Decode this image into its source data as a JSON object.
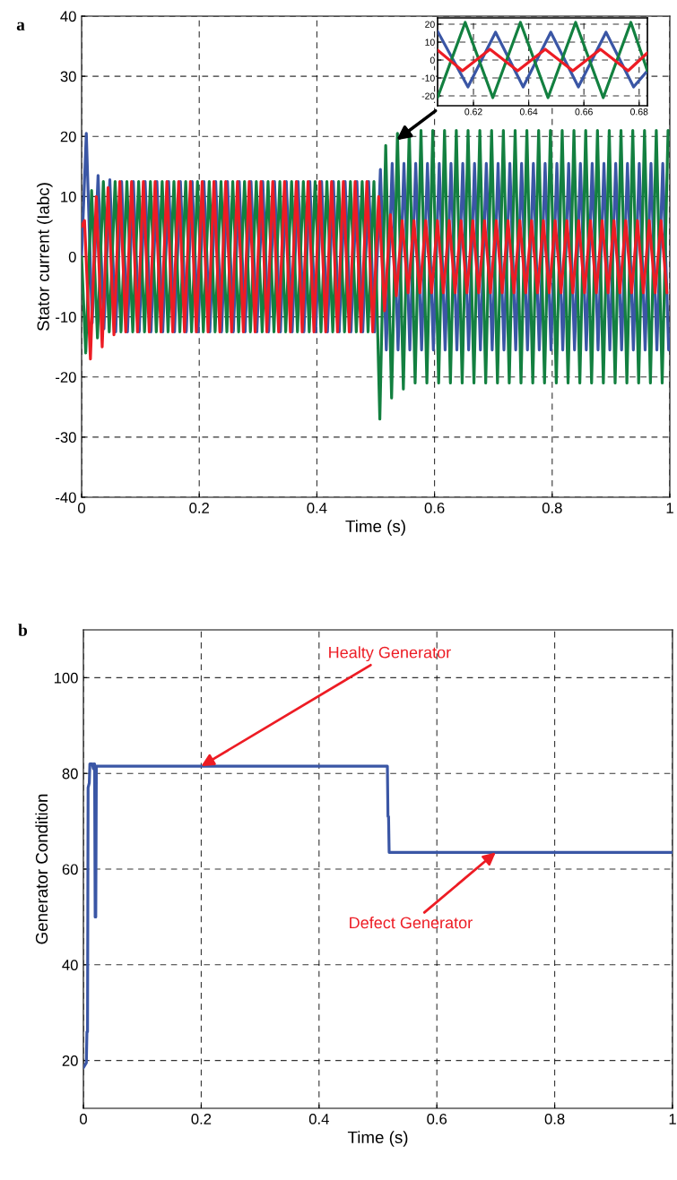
{
  "chart_data": [
    {
      "type": "line",
      "title": "a",
      "xlabel": "Time (s)",
      "ylabel": "Stator current (Iabc)",
      "xlim": [
        0,
        1
      ],
      "ylim": [
        -40,
        40
      ],
      "xticks": [
        0,
        0.2,
        0.4,
        0.6,
        0.8,
        1
      ],
      "yticks": [
        -40,
        -30,
        -20,
        -10,
        0,
        10,
        20,
        30,
        40
      ],
      "grid": true,
      "line_style": "solid",
      "series": [
        {
          "color": "#3a56a5",
          "x": [
            0,
            0.008,
            0.018,
            0.028,
            0.038,
            0.048,
            0.058,
            0.068,
            0.078,
            0.088,
            0.098,
            0.108,
            0.118,
            0.128,
            0.138,
            0.148,
            0.158,
            0.168,
            0.178,
            0.188,
            0.198,
            0.208,
            0.218,
            0.228,
            0.238,
            0.248,
            0.258,
            0.268,
            0.278,
            0.288,
            0.298,
            0.308,
            0.318,
            0.328,
            0.338,
            0.348,
            0.358,
            0.368,
            0.378,
            0.388,
            0.398,
            0.408,
            0.418,
            0.428,
            0.438,
            0.448,
            0.458,
            0.468,
            0.478,
            0.488,
            0.498,
            0.508,
            0.518,
            0.528,
            0.538,
            0.548,
            0.558,
            0.568,
            0.578,
            0.588,
            0.598,
            0.608,
            0.618,
            0.628,
            0.638,
            0.648,
            0.658,
            0.668,
            0.678,
            0.688,
            0.698,
            0.708,
            0.718,
            0.728,
            0.738,
            0.748,
            0.758,
            0.768,
            0.778,
            0.788,
            0.798,
            0.808,
            0.818,
            0.828,
            0.838,
            0.848,
            0.858,
            0.868,
            0.878,
            0.888,
            0.898,
            0.908,
            0.918,
            0.928,
            0.938,
            0.948,
            0.958,
            0.968,
            0.978,
            0.988,
            0.998
          ],
          "values": [
            0,
            20.5,
            -11,
            13.5,
            -12,
            12.8,
            -12.5,
            12.5,
            -12.5,
            12.5,
            -12.5,
            12.5,
            -12.5,
            12.5,
            -12.5,
            12.5,
            -12.5,
            12.5,
            -12.5,
            12.5,
            -12.5,
            12.5,
            -12.5,
            12.5,
            -12.5,
            12.5,
            -12.5,
            12.5,
            -12.5,
            12.5,
            -12.5,
            12.5,
            -12.5,
            12.5,
            -12.5,
            12.5,
            -12.5,
            12.5,
            -12.5,
            12.5,
            -12.5,
            12.5,
            -12.5,
            12.5,
            -12.5,
            12.5,
            -12.5,
            12.5,
            -12.5,
            12.5,
            -12.5,
            14.5,
            -15.5,
            15.5,
            -15.5,
            15.5,
            -15.5,
            15.5,
            -15.5,
            15.5,
            -15.5,
            15.5,
            -15.5,
            15.5,
            -15.5,
            15.5,
            -15.5,
            15.5,
            -15.5,
            15.5,
            -15.5,
            15.5,
            -15.5,
            15.5,
            -15.5,
            15.5,
            -15.5,
            15.5,
            -15.5,
            15.5,
            -15.5,
            15.5,
            -15.5,
            15.5,
            -15.5,
            15.5,
            -15.5,
            15.5,
            -15.5,
            15.5,
            -15.5,
            15.5,
            -15.5,
            15.5,
            -15.5,
            15.5,
            -15.5,
            15.5,
            -15.5,
            15.5,
            -15.5
          ]
        },
        {
          "color": "#138040",
          "x": [
            0,
            0.007,
            0.017,
            0.027,
            0.037,
            0.047,
            0.057,
            0.067,
            0.077,
            0.087,
            0.097,
            0.107,
            0.117,
            0.127,
            0.137,
            0.147,
            0.157,
            0.167,
            0.177,
            0.187,
            0.197,
            0.207,
            0.217,
            0.227,
            0.237,
            0.247,
            0.257,
            0.267,
            0.277,
            0.287,
            0.297,
            0.307,
            0.317,
            0.327,
            0.337,
            0.347,
            0.357,
            0.367,
            0.377,
            0.387,
            0.397,
            0.407,
            0.417,
            0.427,
            0.437,
            0.447,
            0.457,
            0.467,
            0.477,
            0.487,
            0.497,
            0.507,
            0.517,
            0.527,
            0.537,
            0.547,
            0.557,
            0.567,
            0.577,
            0.587,
            0.597,
            0.607,
            0.617,
            0.627,
            0.637,
            0.647,
            0.657,
            0.667,
            0.677,
            0.687,
            0.697,
            0.707,
            0.717,
            0.727,
            0.737,
            0.747,
            0.757,
            0.767,
            0.777,
            0.787,
            0.797,
            0.807,
            0.817,
            0.827,
            0.837,
            0.847,
            0.857,
            0.867,
            0.877,
            0.887,
            0.897,
            0.907,
            0.917,
            0.927,
            0.937,
            0.947,
            0.957,
            0.967,
            0.977,
            0.987,
            0.997
          ],
          "values": [
            0,
            -16,
            11,
            -13.5,
            12.5,
            -12.5,
            12.5,
            -12.5,
            12.5,
            -12.5,
            12.5,
            -12.5,
            12.5,
            -12.5,
            12.5,
            -12.5,
            12.5,
            -12.5,
            12.5,
            -12.5,
            12.5,
            -12.5,
            12.5,
            -12.5,
            12.5,
            -12.5,
            12.5,
            -12.5,
            12.5,
            -12.5,
            12.5,
            -12.5,
            12.5,
            -12.5,
            12.5,
            -12.5,
            12.5,
            -12.5,
            12.5,
            -12.5,
            12.5,
            -12.5,
            12.5,
            -12.5,
            12.5,
            -12.5,
            12.5,
            -12.5,
            12.5,
            -12.5,
            12.5,
            -27,
            18.5,
            -23.5,
            20.5,
            -22,
            21,
            -21,
            21,
            -21,
            21,
            -21,
            21,
            -21,
            21,
            -21,
            21,
            -21,
            21,
            -21,
            21,
            -21,
            21,
            -21,
            21,
            -21,
            21,
            -21,
            21,
            -21,
            21,
            -21,
            21,
            -21,
            21,
            -21,
            21,
            -21,
            21,
            -21,
            21,
            -21,
            21,
            -21,
            21,
            -21,
            21,
            -21,
            21,
            -21,
            21
          ]
        },
        {
          "color": "#ed1c24",
          "x": [
            0,
            0.005,
            0.015,
            0.025,
            0.035,
            0.045,
            0.055,
            0.065,
            0.075,
            0.085,
            0.095,
            0.105,
            0.115,
            0.125,
            0.135,
            0.145,
            0.155,
            0.165,
            0.175,
            0.185,
            0.195,
            0.205,
            0.215,
            0.225,
            0.235,
            0.245,
            0.255,
            0.265,
            0.275,
            0.285,
            0.295,
            0.305,
            0.315,
            0.325,
            0.335,
            0.345,
            0.355,
            0.365,
            0.375,
            0.385,
            0.395,
            0.405,
            0.415,
            0.425,
            0.435,
            0.445,
            0.455,
            0.465,
            0.475,
            0.485,
            0.495,
            0.505,
            0.515,
            0.525,
            0.535,
            0.545,
            0.555,
            0.565,
            0.575,
            0.585,
            0.595,
            0.605,
            0.615,
            0.625,
            0.635,
            0.645,
            0.655,
            0.665,
            0.675,
            0.685,
            0.695,
            0.705,
            0.715,
            0.725,
            0.735,
            0.745,
            0.755,
            0.765,
            0.775,
            0.785,
            0.795,
            0.805,
            0.815,
            0.825,
            0.835,
            0.845,
            0.855,
            0.865,
            0.875,
            0.885,
            0.895,
            0.905,
            0.915,
            0.925,
            0.935,
            0.945,
            0.955,
            0.965,
            0.975,
            0.985,
            0.995
          ],
          "values": [
            5,
            6,
            -17,
            10,
            -15,
            11.5,
            -13,
            12.5,
            -12.5,
            12.5,
            -12.5,
            12.5,
            -12.5,
            12.5,
            -12.5,
            12.5,
            -12.5,
            12.5,
            -12.5,
            12.5,
            -12.5,
            12.5,
            -12.5,
            12.5,
            -12.5,
            12.5,
            -12.5,
            12.5,
            -12.5,
            12.5,
            -12.5,
            12.5,
            -12.5,
            12.5,
            -12.5,
            12.5,
            -12.5,
            12.5,
            -12.5,
            12.5,
            -12.5,
            12.5,
            -12.5,
            12.5,
            -12.5,
            12.5,
            -12.5,
            12.5,
            -12.5,
            12.5,
            -12.5,
            10,
            -9,
            7,
            -6.5,
            6,
            -6,
            6,
            -6,
            6,
            -6,
            6,
            -6,
            6,
            -6,
            6,
            -6,
            6,
            -6,
            6,
            -6,
            6,
            -6,
            6,
            -6,
            6,
            -6,
            6,
            -6,
            6,
            -6,
            6,
            -6,
            6,
            -6,
            6,
            -6,
            6,
            -6,
            6,
            -6,
            6,
            -6,
            6,
            -6,
            6,
            -6,
            6,
            -6,
            6,
            -6
          ]
        }
      ]
    },
    {
      "type": "line",
      "xlim": [
        0.607,
        0.683
      ],
      "ylim": [
        -25.5,
        23.5
      ],
      "xticks": [
        0.62,
        0.64,
        0.66,
        0.68
      ],
      "yticks": [
        -20,
        -10,
        0,
        10,
        20
      ],
      "grid": true,
      "line_style": "solid",
      "series": [
        {
          "color": "#3a56a5",
          "x": [
            0.607,
            0.618,
            0.628,
            0.638,
            0.648,
            0.658,
            0.668,
            0.678,
            0.683
          ],
          "values": [
            16,
            -15,
            15.5,
            -15,
            15.5,
            -15,
            15.5,
            -15,
            -6
          ]
        },
        {
          "color": "#138040",
          "x": [
            0.607,
            0.617,
            0.627,
            0.637,
            0.647,
            0.657,
            0.667,
            0.677,
            0.683
          ],
          "values": [
            -21,
            21,
            -21,
            21,
            -21,
            21,
            -21,
            21,
            -6
          ]
        },
        {
          "color": "#ed1c24",
          "x": [
            0.607,
            0.616,
            0.626,
            0.636,
            0.646,
            0.656,
            0.666,
            0.676,
            0.683
          ],
          "values": [
            5.5,
            -6,
            6,
            -6,
            6,
            -6,
            6,
            -6,
            4
          ]
        }
      ]
    },
    {
      "type": "line",
      "title": "b",
      "xlabel": "Time (s)",
      "ylabel": "Generator Condition",
      "xlim": [
        0,
        1
      ],
      "ylim": [
        10,
        110
      ],
      "xticks": [
        0,
        0.2,
        0.4,
        0.6,
        0.8,
        1
      ],
      "yticks": [
        20,
        40,
        60,
        80,
        100
      ],
      "grid": true,
      "line_style": "solid",
      "series": [
        {
          "color": "#3a56a5",
          "x": [
            0,
            0.005,
            0.006,
            0.007,
            0.008,
            0.01,
            0.011,
            0.015,
            0.017,
            0.018,
            0.019,
            0.02,
            0.021,
            0.022,
            0.516,
            0.517,
            0.518,
            0.519,
            1
          ],
          "values": [
            18.5,
            19.5,
            26,
            26,
            77,
            78,
            82,
            82,
            81,
            82,
            82,
            50,
            50,
            81.5,
            81.5,
            71,
            71,
            63.5,
            63.5
          ]
        }
      ],
      "annotations": [
        {
          "text": "Healty Generator",
          "x": 0.2,
          "y": 81.5
        },
        {
          "text": "Defect Generator",
          "x": 0.7,
          "y": 63.5
        }
      ]
    }
  ]
}
